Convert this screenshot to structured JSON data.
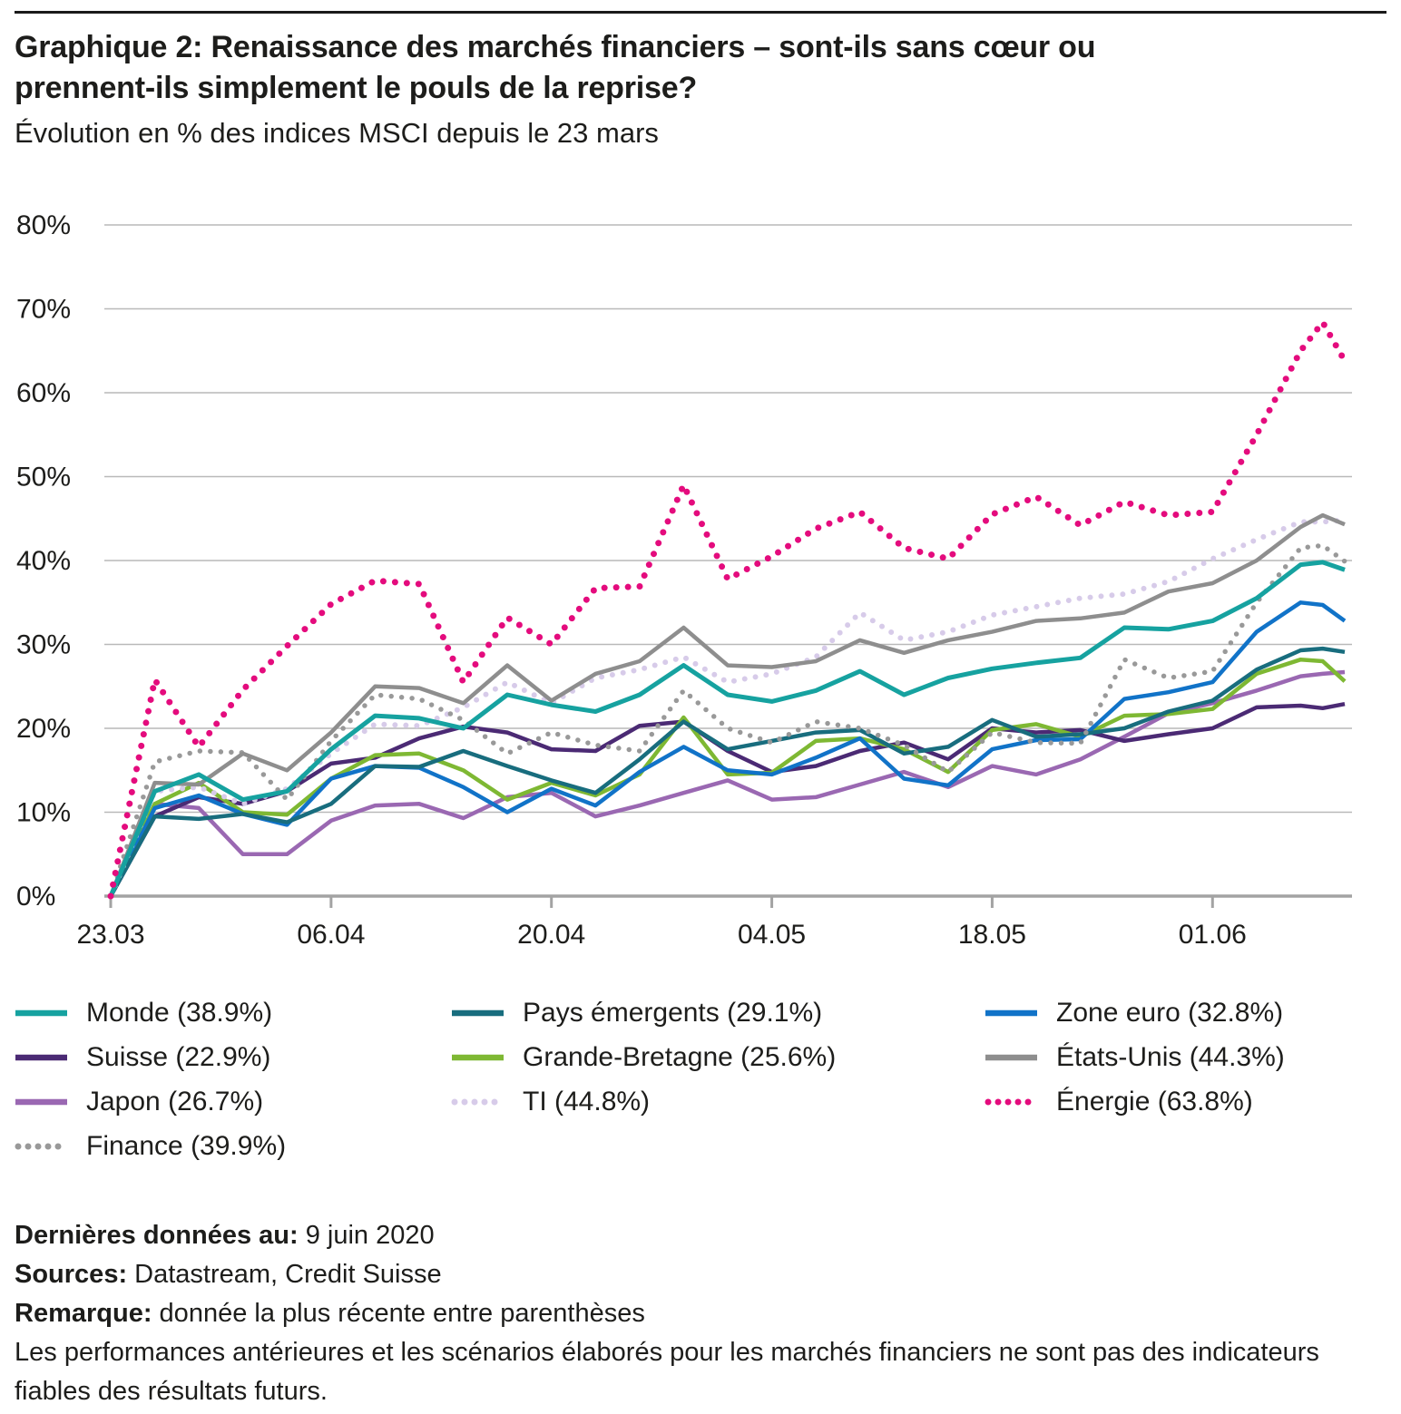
{
  "page": {
    "title_line1": "Graphique 2: Renaissance des marchés financiers – sont-ils sans cœur ou",
    "title_line2": "prennent-ils simplement le pouls de la reprise?",
    "subtitle": "Évolution en % des indices MSCI depuis le 23 mars"
  },
  "colors": {
    "monde": "#16a2a0",
    "pays_emergents": "#186d7e",
    "zone_euro": "#1173c8",
    "suisse": "#4b2a74",
    "grande_bretagne": "#7eb833",
    "etats_unis": "#8e8e8e",
    "japon": "#9a68b2",
    "ti": "#d7cbe9",
    "energie": "#e40b7d",
    "finance": "#999999",
    "grid": "#b9b9b9",
    "axis": "#a3a3a3"
  },
  "chart_data": {
    "type": "line",
    "title": "Évolution en % des indices MSCI depuis le 23 mars",
    "xlabel": "",
    "ylabel": "",
    "ylim": [
      0,
      80
    ],
    "grid": "horizontal",
    "legend_position": "bottom",
    "y_ticks": [
      {
        "v": 0,
        "label": "0%"
      },
      {
        "v": 10,
        "label": "10%"
      },
      {
        "v": 20,
        "label": "20%"
      },
      {
        "v": 30,
        "label": "30%"
      },
      {
        "v": 40,
        "label": "40%"
      },
      {
        "v": 50,
        "label": "50%"
      },
      {
        "v": 60,
        "label": "60%"
      },
      {
        "v": 70,
        "label": "70%"
      },
      {
        "v": 80,
        "label": "80%"
      }
    ],
    "x_ticks": [
      {
        "i": 0,
        "label": "23.03"
      },
      {
        "i": 10,
        "label": "06.04"
      },
      {
        "i": 20,
        "label": "20.04"
      },
      {
        "i": 30,
        "label": "04.05"
      },
      {
        "i": 40,
        "label": "18.05"
      },
      {
        "i": 50,
        "label": "01.06"
      }
    ],
    "x_index": [
      0,
      2,
      4,
      6,
      8,
      10,
      12,
      14,
      16,
      18,
      20,
      22,
      24,
      26,
      28,
      30,
      32,
      34,
      36,
      38,
      40,
      42,
      44,
      46,
      48,
      50,
      52,
      54,
      55,
      56
    ],
    "categories": [
      "23.03",
      "25.03",
      "27.03",
      "31.03",
      "02.04",
      "06.04",
      "08.04",
      "10.04",
      "14.04",
      "16.04",
      "20.04",
      "22.04",
      "24.04",
      "28.04",
      "30.04",
      "04.05",
      "06.05",
      "08.05",
      "12.05",
      "14.05",
      "18.05",
      "20.05",
      "22.05",
      "26.05",
      "28.05",
      "01.06",
      "03.06",
      "05.06",
      "08.06",
      "09.06"
    ],
    "series": [
      {
        "name": "Japon",
        "last_value": 26.7,
        "color": "#9a68b2",
        "dotted": false,
        "width": 4.5,
        "values": [
          0,
          11.0,
          10.5,
          5.0,
          5.0,
          9.0,
          10.8,
          11.0,
          9.3,
          11.8,
          12.3,
          9.5,
          10.8,
          12.3,
          13.8,
          11.5,
          11.8,
          13.3,
          14.8,
          13.0,
          15.5,
          14.5,
          16.3,
          19.0,
          21.8,
          23.0,
          24.5,
          26.2,
          26.5,
          26.7
        ]
      },
      {
        "name": "Suisse",
        "last_value": 22.9,
        "color": "#4b2a74",
        "dotted": false,
        "width": 4.5,
        "values": [
          0,
          9.5,
          11.8,
          11.0,
          12.5,
          15.8,
          16.5,
          18.8,
          20.2,
          19.5,
          17.5,
          17.3,
          20.3,
          20.8,
          17.3,
          14.8,
          15.5,
          17.3,
          18.3,
          16.3,
          20.0,
          19.5,
          19.8,
          18.5,
          19.3,
          20.0,
          22.5,
          22.7,
          22.4,
          22.9
        ]
      },
      {
        "name": "Grande-Bretagne",
        "last_value": 25.6,
        "color": "#7eb833",
        "dotted": false,
        "width": 4.5,
        "values": [
          0,
          11.0,
          13.5,
          10.0,
          9.7,
          14.0,
          16.8,
          17.0,
          15.0,
          11.5,
          13.5,
          12.0,
          14.5,
          21.3,
          14.5,
          14.7,
          18.5,
          18.8,
          17.5,
          14.8,
          19.8,
          20.5,
          19.0,
          21.5,
          21.7,
          22.3,
          26.5,
          28.2,
          28.0,
          25.6
        ]
      },
      {
        "name": "Zone euro",
        "last_value": 32.8,
        "color": "#1173c8",
        "dotted": false,
        "width": 4.5,
        "values": [
          0,
          10.5,
          12.0,
          9.8,
          8.5,
          14.0,
          15.5,
          15.3,
          13.0,
          10.0,
          12.8,
          10.8,
          14.8,
          17.8,
          15.0,
          14.5,
          16.5,
          18.8,
          14.0,
          13.2,
          17.5,
          18.6,
          18.7,
          23.5,
          24.3,
          25.5,
          31.5,
          35.0,
          34.7,
          32.8
        ]
      },
      {
        "name": "Pays émergents",
        "last_value": 29.1,
        "color": "#186d7e",
        "dotted": false,
        "width": 4.5,
        "values": [
          0,
          9.5,
          9.2,
          9.8,
          8.8,
          11.0,
          15.5,
          15.4,
          17.3,
          15.5,
          13.8,
          12.3,
          16.3,
          20.8,
          17.5,
          18.5,
          19.5,
          19.8,
          17.0,
          17.8,
          21.0,
          19.0,
          19.3,
          20.0,
          22.0,
          23.3,
          27.0,
          29.3,
          29.5,
          29.1
        ]
      },
      {
        "name": "TI",
        "last_value": 44.8,
        "color": "#d7cbe9",
        "dotted": true,
        "width": 6,
        "values": [
          0,
          12.5,
          13.0,
          11.0,
          12.8,
          17.0,
          20.5,
          20.3,
          22.5,
          25.5,
          23.0,
          26.0,
          27.0,
          28.5,
          25.5,
          26.5,
          28.5,
          33.8,
          30.5,
          31.5,
          33.5,
          34.5,
          35.5,
          36.0,
          37.5,
          40.2,
          42.5,
          44.6,
          44.6,
          44.8
        ]
      },
      {
        "name": "Finance",
        "last_value": 39.9,
        "color": "#999999",
        "dotted": true,
        "width": 5.5,
        "values": [
          0,
          16.0,
          17.3,
          17.1,
          11.5,
          18.5,
          24.0,
          23.5,
          21.0,
          17.0,
          19.5,
          18.0,
          17.3,
          24.5,
          20.0,
          18.3,
          20.8,
          20.0,
          18.0,
          14.8,
          19.5,
          18.3,
          18.2,
          28.2,
          26.0,
          26.8,
          35.0,
          41.5,
          41.8,
          39.9
        ]
      },
      {
        "name": "États-Unis",
        "last_value": 44.3,
        "color": "#8e8e8e",
        "dotted": false,
        "width": 4.5,
        "values": [
          0,
          13.5,
          13.3,
          17.0,
          15.0,
          19.5,
          25.0,
          24.8,
          23.0,
          27.5,
          23.3,
          26.5,
          28.0,
          32.0,
          27.5,
          27.3,
          28.0,
          30.5,
          29.0,
          30.5,
          31.5,
          32.8,
          33.1,
          33.8,
          36.3,
          37.3,
          40.0,
          44.0,
          45.4,
          44.3
        ]
      },
      {
        "name": "Monde",
        "last_value": 38.9,
        "color": "#16a2a0",
        "dotted": false,
        "width": 5,
        "values": [
          0,
          12.5,
          14.5,
          11.5,
          12.5,
          17.5,
          21.5,
          21.2,
          20.0,
          24.0,
          22.8,
          22.0,
          24.0,
          27.5,
          24.0,
          23.2,
          24.5,
          26.8,
          24.0,
          26.0,
          27.1,
          27.8,
          28.4,
          32.0,
          31.8,
          32.8,
          35.5,
          39.5,
          39.8,
          38.9
        ]
      },
      {
        "name": "Énergie",
        "last_value": 63.8,
        "color": "#e40b7d",
        "dotted": true,
        "width": 7,
        "values": [
          0,
          25.8,
          17.8,
          24.6,
          29.8,
          34.8,
          37.6,
          37.2,
          25.5,
          33.2,
          30.0,
          36.7,
          36.9,
          49.0,
          37.8,
          40.5,
          43.8,
          45.8,
          41.5,
          40.2,
          45.5,
          47.6,
          44.2,
          47.0,
          45.4,
          45.8,
          55.0,
          65.0,
          68.4,
          63.8
        ]
      }
    ]
  },
  "legend": {
    "items": [
      {
        "label": "Monde (38.9%)",
        "color": "#16a2a0",
        "dotted": false
      },
      {
        "label": "Pays émergents (29.1%)",
        "color": "#186d7e",
        "dotted": false
      },
      {
        "label": "Zone euro (32.8%)",
        "color": "#1173c8",
        "dotted": false
      },
      {
        "label": "Suisse (22.9%)",
        "color": "#4b2a74",
        "dotted": false
      },
      {
        "label": "Grande-Bretagne (25.6%)",
        "color": "#7eb833",
        "dotted": false
      },
      {
        "label": "États-Unis (44.3%)",
        "color": "#8e8e8e",
        "dotted": false
      },
      {
        "label": "Japon (26.7%)",
        "color": "#9a68b2",
        "dotted": false
      },
      {
        "label": "TI (44.8%)",
        "color": "#d7cbe9",
        "dotted": true
      },
      {
        "label": "Énergie (63.8%)",
        "color": "#e40b7d",
        "dotted": true
      },
      {
        "label": "Finance (39.9%)",
        "color": "#999999",
        "dotted": true
      }
    ]
  },
  "footer": {
    "line1_label": "Dernières données au:",
    "line1_text": " 9 juin 2020",
    "line2_label": "Sources:",
    "line2_text": " Datastream, Credit Suisse",
    "line3_label": "Remarque:",
    "line3_text": " donnée la plus récente entre parenthèses",
    "disclaimer": "Les performances antérieures et les scénarios élaborés pour les marchés financiers ne sont pas des indicateurs fiables des résultats futurs."
  }
}
